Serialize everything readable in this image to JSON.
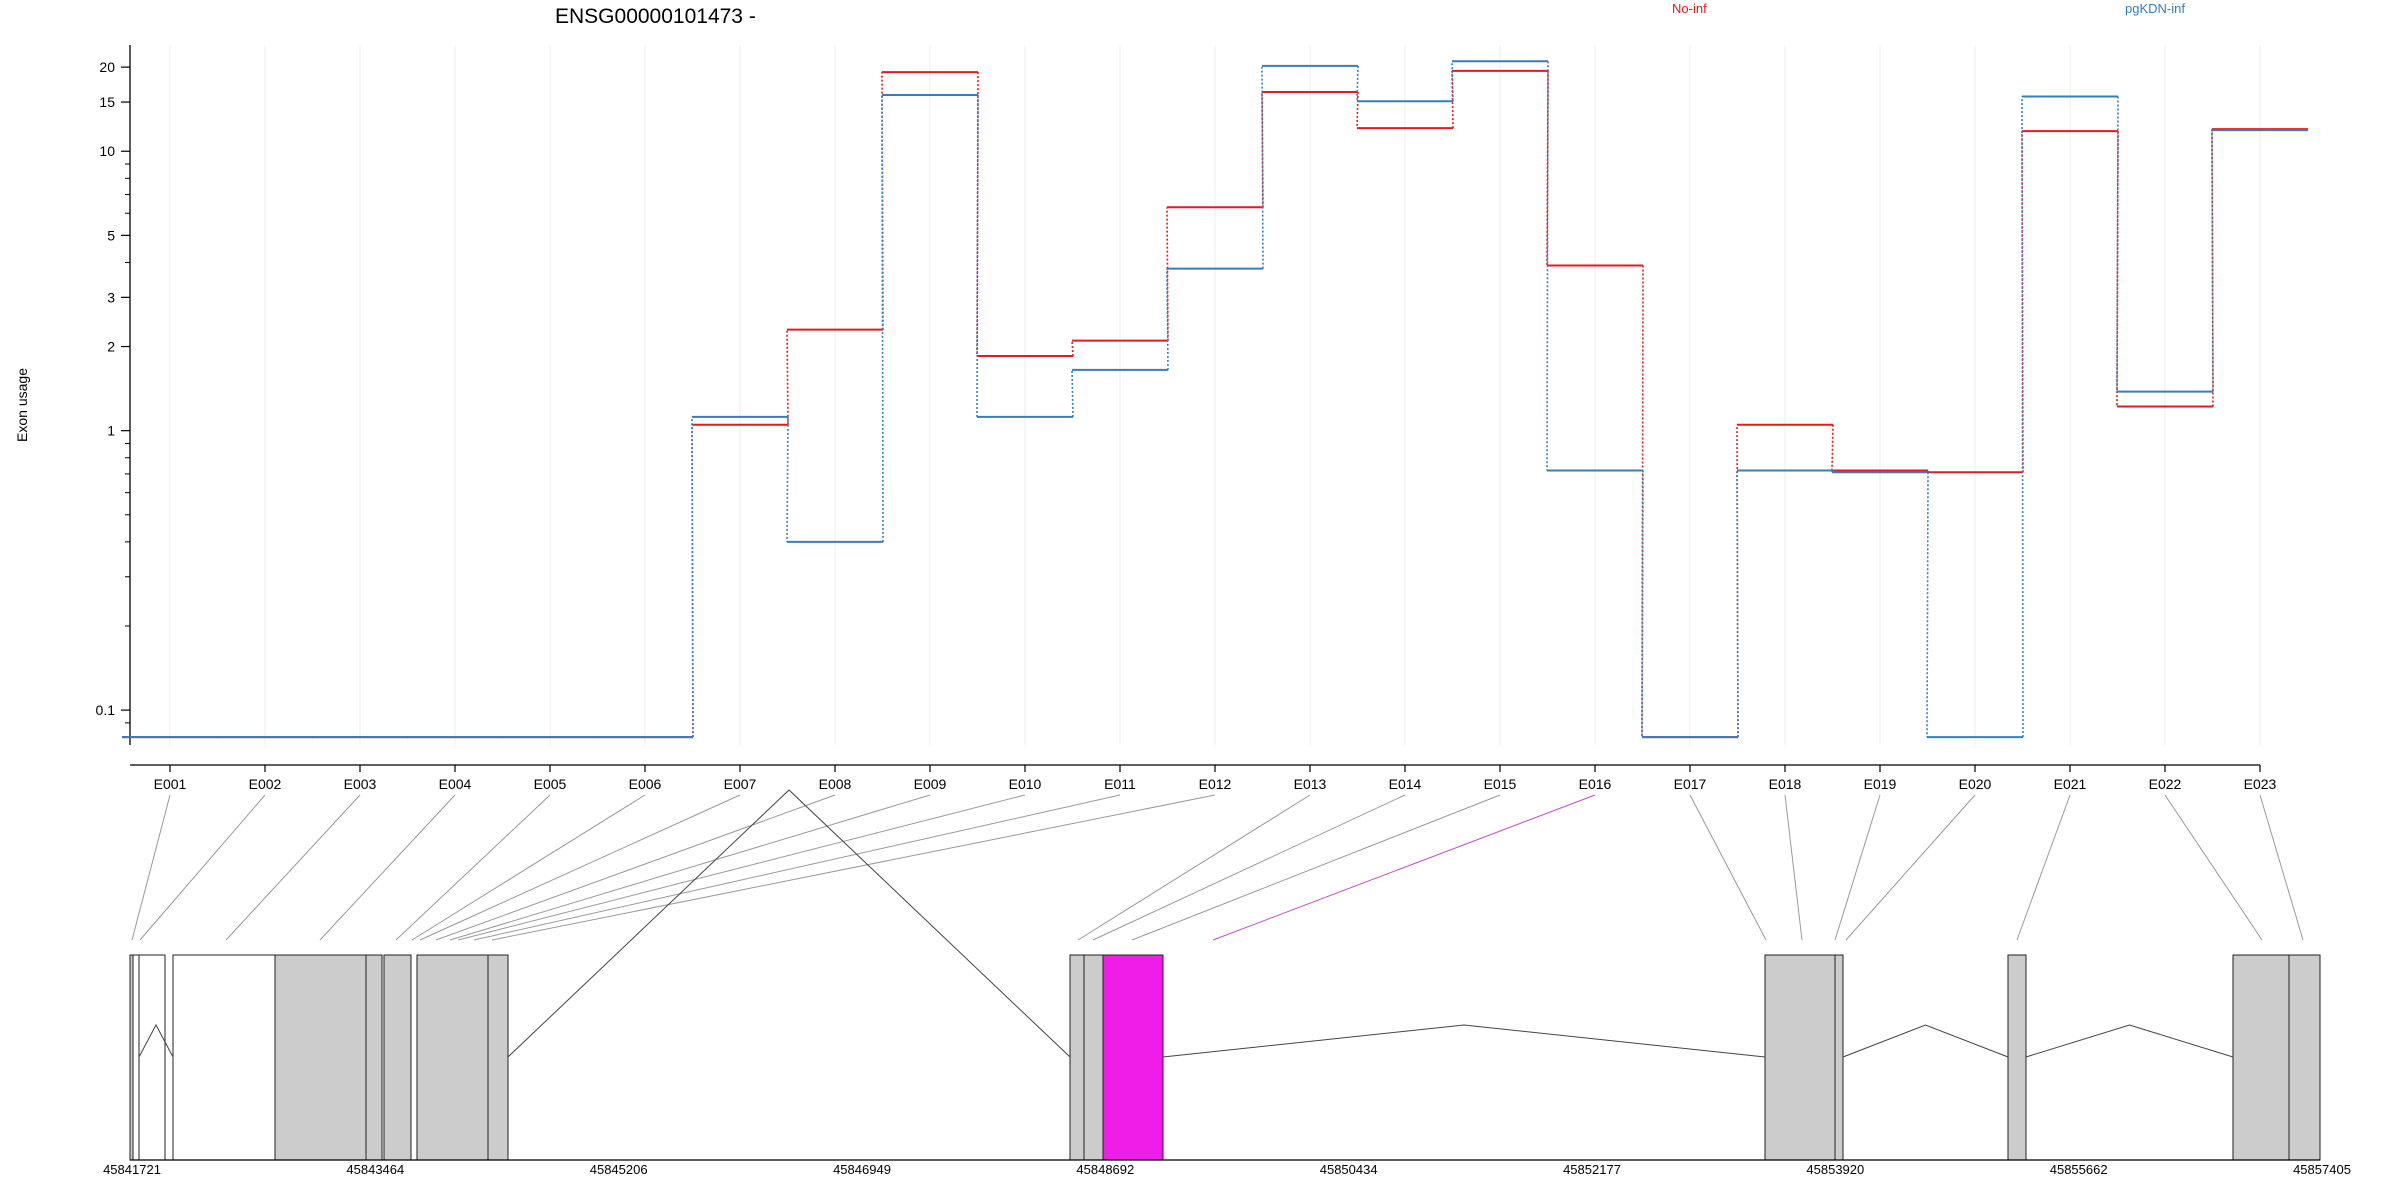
{
  "chart_data": {
    "type": "line",
    "title": "ENSG00000101473 -",
    "ylabel": "Exon usage",
    "xlabel": "",
    "y_scale": "log",
    "ylim": [
      0.075,
      24
    ],
    "y_ticks": [
      "0.1",
      "1",
      "2",
      "3",
      "5",
      "10",
      "15",
      "20"
    ],
    "grid": "vertical-light",
    "legend_position": "top",
    "categories": [
      "E001",
      "E002",
      "E003",
      "E004",
      "E005",
      "E006",
      "E007",
      "E008",
      "E009",
      "E010",
      "E011",
      "E012",
      "E013",
      "E014",
      "E015",
      "E016",
      "E017",
      "E018",
      "E019",
      "E020",
      "E021",
      "E022",
      "E023"
    ],
    "series": [
      {
        "name": "No-inf",
        "color": "#e41a1c",
        "values": [
          0.08,
          0.08,
          0.08,
          0.08,
          0.08,
          0.08,
          1.05,
          2.3,
          19.2,
          1.85,
          2.1,
          6.3,
          16.3,
          12.1,
          19.4,
          3.9,
          0.08,
          1.05,
          0.72,
          0.71,
          11.8,
          1.22,
          12.0
        ]
      },
      {
        "name": "pgKDN-inf",
        "color": "#377eb8",
        "values": [
          0.08,
          0.08,
          0.08,
          0.08,
          0.08,
          0.08,
          1.12,
          0.4,
          15.9,
          1.12,
          1.65,
          3.8,
          20.2,
          15.1,
          21.0,
          0.72,
          0.08,
          0.72,
          0.71,
          0.08,
          15.7,
          1.38,
          11.9
        ]
      }
    ],
    "highlighted_exon": "E016",
    "highlight_color": "#f01ce8",
    "gene_model_coordinate_labels": [
      "45841721",
      "45843464",
      "45845206",
      "45846949",
      "45848692",
      "45850434",
      "45852177",
      "45853920",
      "45855662",
      "45857405"
    ]
  }
}
